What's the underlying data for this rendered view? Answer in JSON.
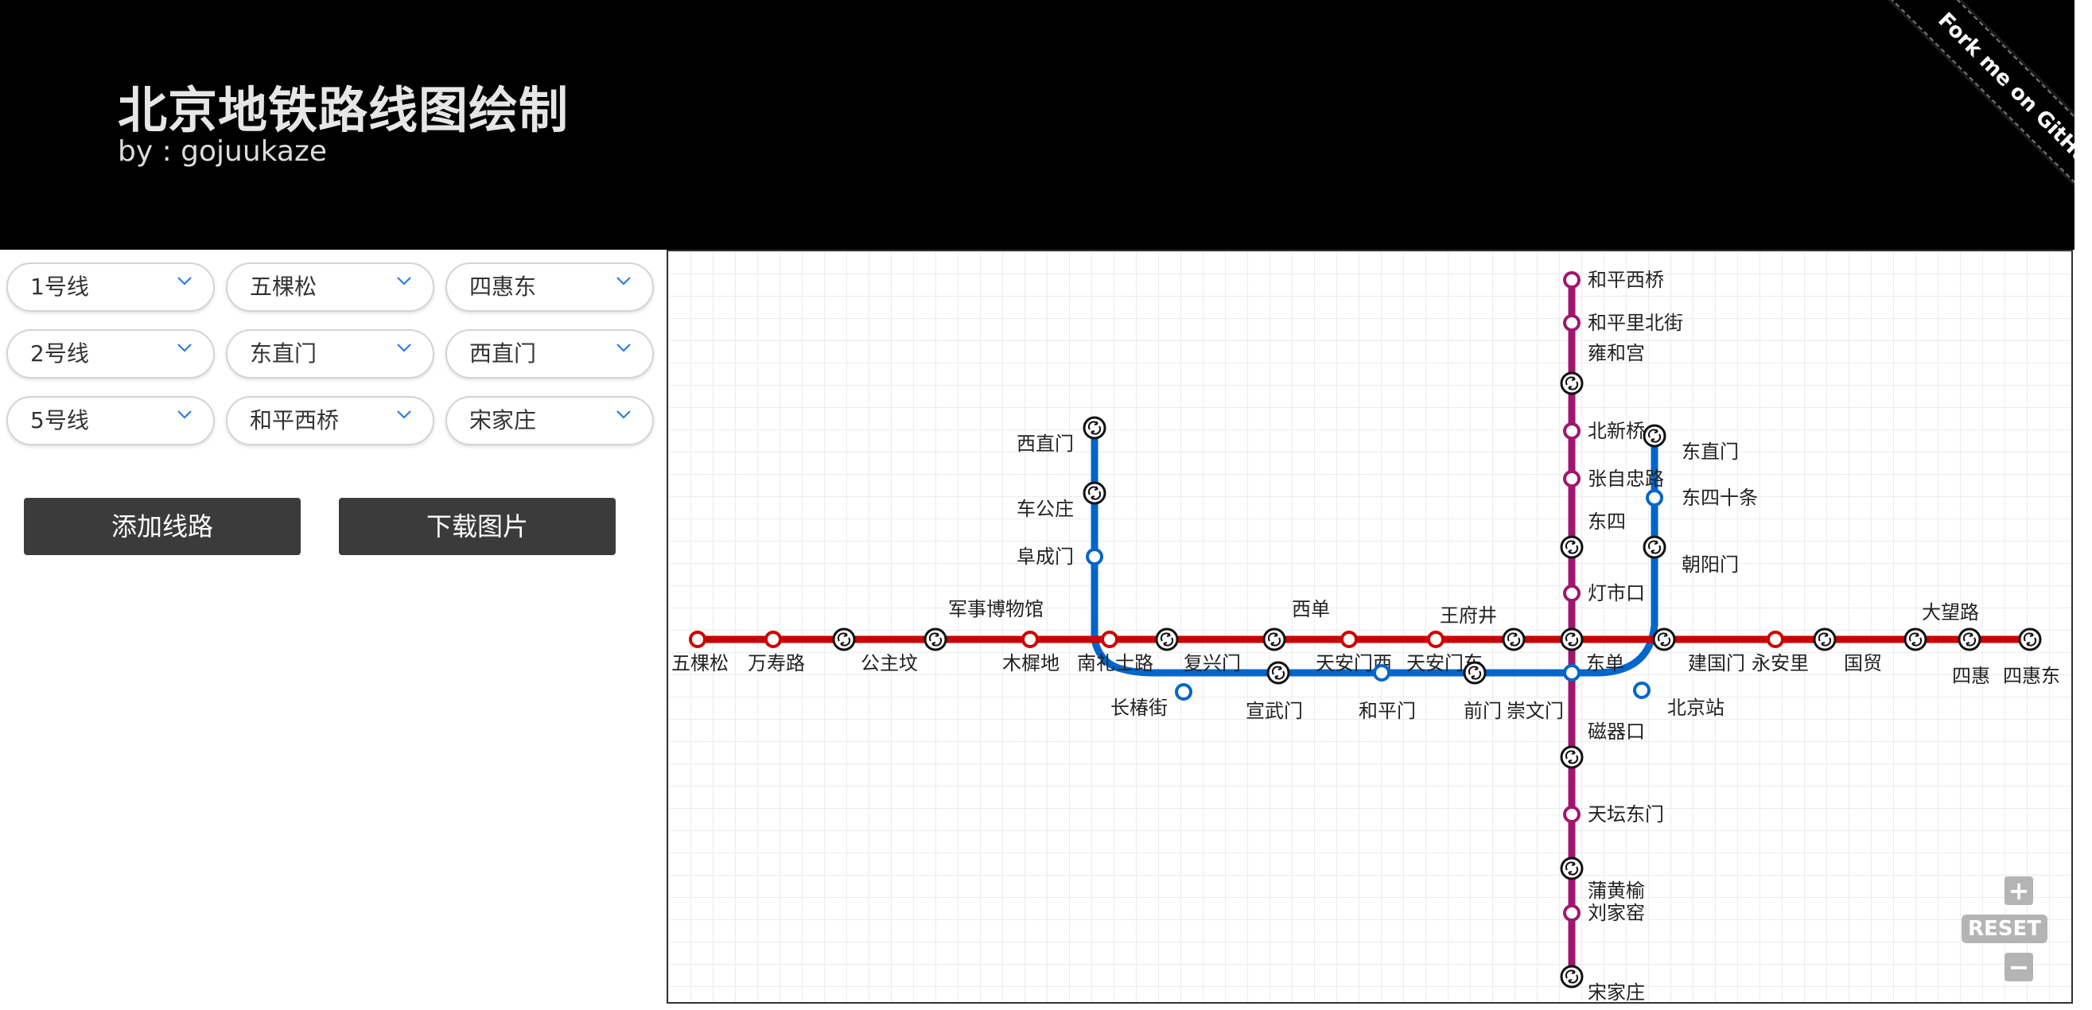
{
  "header": {
    "title": "北京地铁路线图绘制",
    "subtitle": "by : gojuukaze",
    "ribbon": "Fork me on GitHub"
  },
  "controls": {
    "rows": [
      {
        "line": "1号线",
        "from": "五棵松",
        "to": "四惠东"
      },
      {
        "line": "2号线",
        "from": "东直门",
        "to": "西直门"
      },
      {
        "line": "5号线",
        "from": "和平西桥",
        "to": "宋家庄"
      }
    ],
    "add_label": "添加线路",
    "download_label": "下载图片"
  },
  "map": {
    "colors": {
      "line1": "#cc0000",
      "line2": "#0066cc",
      "line5": "#a0166e"
    },
    "stations": [
      {
        "id": "wukesong",
        "label": "五棵松"
      },
      {
        "id": "wanshoulu",
        "label": "万寿路"
      },
      {
        "id": "gongzhufen",
        "label": "公主坟"
      },
      {
        "id": "junshi",
        "label": "军事博物馆"
      },
      {
        "id": "muxidi",
        "label": "木樨地"
      },
      {
        "id": "nanlishilu",
        "label": "南礼士路"
      },
      {
        "id": "fuxingmen",
        "label": "复兴门"
      },
      {
        "id": "xidan",
        "label": "西单"
      },
      {
        "id": "tamxi",
        "label": "天安门西"
      },
      {
        "id": "tamdong",
        "label": "天安门东"
      },
      {
        "id": "wangfujing",
        "label": "王府井"
      },
      {
        "id": "dongdan",
        "label": "东单"
      },
      {
        "id": "jianguomen",
        "label": "建国门"
      },
      {
        "id": "yonganli",
        "label": "永安里"
      },
      {
        "id": "guomao",
        "label": "国贸"
      },
      {
        "id": "dawanglu",
        "label": "大望路"
      },
      {
        "id": "sihui",
        "label": "四惠"
      },
      {
        "id": "sihuidong",
        "label": "四惠东"
      },
      {
        "id": "xizhimen",
        "label": "西直门"
      },
      {
        "id": "chegongzhuang",
        "label": "车公庄"
      },
      {
        "id": "fuchengmen",
        "label": "阜成门"
      },
      {
        "id": "changchunjie",
        "label": "长椿街"
      },
      {
        "id": "xuanwumen",
        "label": "宣武门"
      },
      {
        "id": "hepingmen",
        "label": "和平门"
      },
      {
        "id": "qianmen",
        "label": "前门"
      },
      {
        "id": "chongwenmen",
        "label": "崇文门"
      },
      {
        "id": "beijingzhan",
        "label": "北京站"
      },
      {
        "id": "chaoyangmen",
        "label": "朝阳门"
      },
      {
        "id": "dongsishitiao",
        "label": "东四十条"
      },
      {
        "id": "dongzhimen",
        "label": "东直门"
      },
      {
        "id": "hepingxiqiao",
        "label": "和平西桥"
      },
      {
        "id": "hepinglibeijie",
        "label": "和平里北街"
      },
      {
        "id": "yonghegong",
        "label": "雍和宫"
      },
      {
        "id": "beixinqiao",
        "label": "北新桥"
      },
      {
        "id": "zhangzizhonglu",
        "label": "张自忠路"
      },
      {
        "id": "dongsi",
        "label": "东四"
      },
      {
        "id": "dengshikou",
        "label": "灯市口"
      },
      {
        "id": "ciqikou",
        "label": "磁器口"
      },
      {
        "id": "tiantandongmen",
        "label": "天坛东门"
      },
      {
        "id": "puhuangyu",
        "label": "蒲黄榆"
      },
      {
        "id": "liujiayao",
        "label": "刘家窑"
      },
      {
        "id": "songjiazhuang",
        "label": "宋家庄"
      }
    ],
    "zoom_in_label": "+",
    "reset_label": "RESET",
    "zoom_out_label": "−"
  }
}
